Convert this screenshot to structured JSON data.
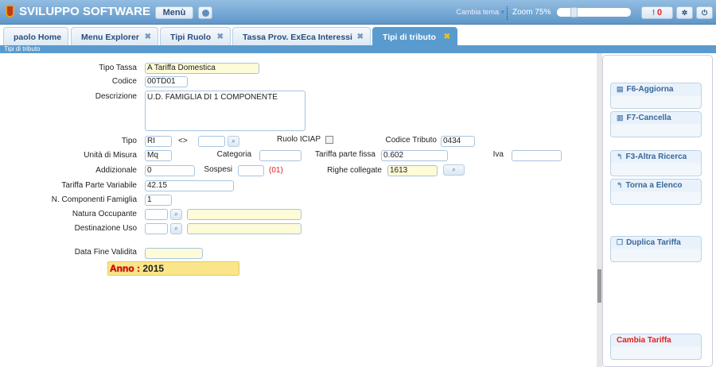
{
  "header": {
    "app_title": "SVILUPPO SOFTWARE",
    "menu_label": "Menù",
    "theme_label": "Cambia tema",
    "zoom_label": "Zoom 75%",
    "zoom_value_percent": 75,
    "alerts_count": "0"
  },
  "tabs": [
    {
      "label": "paolo Home"
    },
    {
      "label": "Menu Explorer"
    },
    {
      "label": "Tipi Ruolo"
    },
    {
      "label": "Tassa Prov. ExEca Interessi"
    },
    {
      "label": "Tipi di tributo",
      "active": true
    }
  ],
  "breadcrumb": "Tipi di tributo",
  "form": {
    "tipo_tassa": {
      "label": "Tipo Tassa",
      "value": "A Tariffa Domestica"
    },
    "codice": {
      "label": "Codice",
      "value": "00TD01"
    },
    "descrizione": {
      "label": "Descrizione",
      "value": "U.D. FAMIGLIA DI 1 COMPONENTE"
    },
    "tipo": {
      "label": "Tipo",
      "value": "RI",
      "separator": "<>",
      "value2": ""
    },
    "ruolo_iciap": {
      "label": "Ruolo ICIAP",
      "checked": false
    },
    "codice_tributo": {
      "label": "Codice Tributo",
      "value": "0434"
    },
    "unita_misura": {
      "label": "Unità di Misura",
      "value": "Mq"
    },
    "categoria": {
      "label": "Categoria",
      "value": ""
    },
    "tariffa_fissa": {
      "label": "Tariffa parte fissa",
      "value": "0.602"
    },
    "iva": {
      "label": "Iva",
      "value": ""
    },
    "addizionale": {
      "label": "Addizionale",
      "value": "0"
    },
    "sospesi": {
      "label": "Sospesi",
      "value": "",
      "code": "(01)"
    },
    "righe_collegate": {
      "label": "Righe collegate",
      "value": "1613"
    },
    "tariffa_variabile": {
      "label": "Tariffa Parte Variabile",
      "value": "42.15"
    },
    "n_componenti": {
      "label": "N. Componenti Famiglia",
      "value": "1"
    },
    "natura_occupante": {
      "label": "Natura Occupante",
      "value": "",
      "desc": ""
    },
    "destinazione_uso": {
      "label": "Destinazione Uso",
      "value": "",
      "desc": ""
    },
    "data_fine": {
      "label": "Data Fine Validita",
      "value": ""
    },
    "anno": {
      "label": "Anno :",
      "value": "2015"
    }
  },
  "actions": {
    "aggiorna": "F6-Aggiorna",
    "cancella": "F7-Cancella",
    "altra_ricerca": "F3-Altra Ricerca",
    "torna": "Torna a Elenco",
    "duplica": "Duplica Tariffa",
    "cambia": "Cambia Tariffa"
  },
  "colors": {
    "header": "#5f97c9",
    "accent": "#5a9bcf",
    "anno_bg": "#fbe58a",
    "alert": "#e8202a"
  }
}
